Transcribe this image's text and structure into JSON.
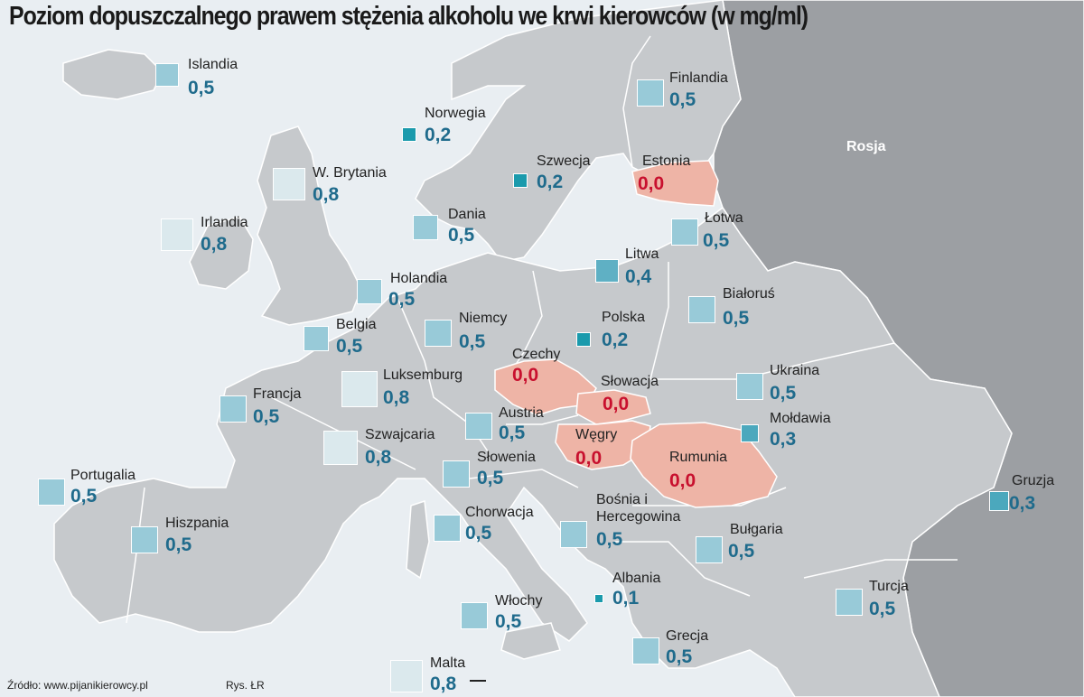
{
  "title": "Poziom dopuszczalnego prawem stężenia alkoholu we krwi kierowców (w mg/ml)",
  "colors": {
    "sea": "#e9eef2",
    "land": "#c6c9cc",
    "russia": "#9c9fa3",
    "zero_fill": "#eeb4a6",
    "value_blue": "#1f6b8c",
    "value_red": "#c8102e",
    "sq_02": "#1a9aac",
    "sq_03": "#4ba8bd",
    "sq_04": "#5fb0c4",
    "sq_05": "#98cad8",
    "sq_08": "#dbe9ed"
  },
  "russia_label": "Rosja",
  "countries": [
    {
      "id": "islandia",
      "name": "Islandia",
      "value": "0,5",
      "level": "05"
    },
    {
      "id": "norwegia",
      "name": "Norwegia",
      "value": "0,2",
      "level": "02"
    },
    {
      "id": "finlandia",
      "name": "Finlandia",
      "value": "0,5",
      "level": "05"
    },
    {
      "id": "szwecja",
      "name": "Szwecja",
      "value": "0,2",
      "level": "02"
    },
    {
      "id": "estonia",
      "name": "Estonia",
      "value": "0,0",
      "level": "00"
    },
    {
      "id": "w-brytania",
      "name": "W. Brytania",
      "value": "0,8",
      "level": "08"
    },
    {
      "id": "irlandia",
      "name": "Irlandia",
      "value": "0,8",
      "level": "08"
    },
    {
      "id": "dania",
      "name": "Dania",
      "value": "0,5",
      "level": "05"
    },
    {
      "id": "lotwa",
      "name": "Łotwa",
      "value": "0,5",
      "level": "05"
    },
    {
      "id": "litwa",
      "name": "Litwa",
      "value": "0,4",
      "level": "04"
    },
    {
      "id": "holandia",
      "name": "Holandia",
      "value": "0,5",
      "level": "05"
    },
    {
      "id": "bialorus",
      "name": "Białoruś",
      "value": "0,5",
      "level": "05"
    },
    {
      "id": "belgia",
      "name": "Belgia",
      "value": "0,5",
      "level": "05"
    },
    {
      "id": "niemcy",
      "name": "Niemcy",
      "value": "0,5",
      "level": "05"
    },
    {
      "id": "polska",
      "name": "Polska",
      "value": "0,2",
      "level": "02"
    },
    {
      "id": "czechy",
      "name": "Czechy",
      "value": "0,0",
      "level": "00"
    },
    {
      "id": "luksemburg",
      "name": "Luksemburg",
      "value": "0,8",
      "level": "08"
    },
    {
      "id": "slowacja",
      "name": "Słowacja",
      "value": "0,0",
      "level": "00"
    },
    {
      "id": "ukraina",
      "name": "Ukraina",
      "value": "0,5",
      "level": "05"
    },
    {
      "id": "francja",
      "name": "Francja",
      "value": "0,5",
      "level": "05"
    },
    {
      "id": "austria",
      "name": "Austria",
      "value": "0,5",
      "level": "05"
    },
    {
      "id": "moldawia",
      "name": "Mołdawia",
      "value": "0,3",
      "level": "03"
    },
    {
      "id": "wegry",
      "name": "Węgry",
      "value": "0,0",
      "level": "00"
    },
    {
      "id": "szwajcaria",
      "name": "Szwajcaria",
      "value": "0,8",
      "level": "08"
    },
    {
      "id": "rumunia",
      "name": "Rumunia",
      "value": "0,0",
      "level": "00"
    },
    {
      "id": "slowenia",
      "name": "Słowenia",
      "value": "0,5",
      "level": "05"
    },
    {
      "id": "portugalia",
      "name": "Portugalia",
      "value": "0,5",
      "level": "05"
    },
    {
      "id": "gruzja",
      "name": "Gruzja",
      "value": "0,3",
      "level": "03"
    },
    {
      "id": "bosnia",
      "name": "Bośnia i",
      "name2": "Hercegowina",
      "value": "0,5",
      "level": "05"
    },
    {
      "id": "chorwacja",
      "name": "Chorwacja",
      "value": "0,5",
      "level": "05"
    },
    {
      "id": "hiszpania",
      "name": "Hiszpania",
      "value": "0,5",
      "level": "05"
    },
    {
      "id": "bulgaria",
      "name": "Bułgaria",
      "value": "0,5",
      "level": "05"
    },
    {
      "id": "albania",
      "name": "Albania",
      "value": "0,1",
      "level": "01"
    },
    {
      "id": "turcja",
      "name": "Turcja",
      "value": "0,5",
      "level": "05"
    },
    {
      "id": "wlochy",
      "name": "Włochy",
      "value": "0,5",
      "level": "05"
    },
    {
      "id": "grecja",
      "name": "Grecja",
      "value": "0,5",
      "level": "05"
    },
    {
      "id": "malta",
      "name": "Malta",
      "value": "0,8",
      "level": "08"
    }
  ],
  "footer": {
    "source": "Źródło: www.pijanikierowcy.pl",
    "credit": "Rys. ŁR"
  }
}
